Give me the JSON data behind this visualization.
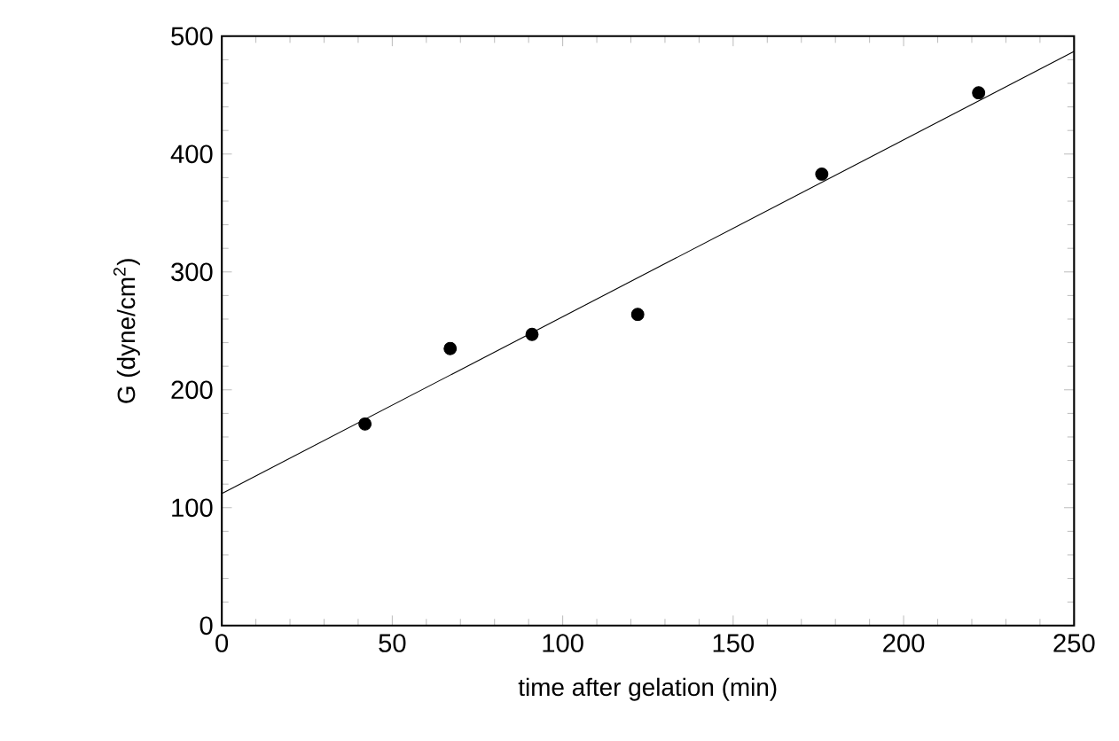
{
  "chart_data": {
    "type": "scatter",
    "xlabel": "time after gelation (min)",
    "ylabel": "G (dyne/cm$^{2}$)",
    "series": [
      {
        "color": "#000000",
        "marker": "circle",
        "x": [
          42,
          67,
          91,
          122,
          176,
          222
        ],
        "values": [
          171,
          235,
          247,
          264,
          383,
          452
        ]
      },
      {
        "type": "line",
        "color": "#000000",
        "marker": "none",
        "line_style": "solid",
        "x": [
          0,
          250
        ],
        "values": [
          112,
          487
        ]
      }
    ],
    "xlim": [
      0,
      250
    ],
    "ylim": [
      0,
      500
    ],
    "xticks": [
      0,
      50,
      100,
      150,
      200,
      250
    ],
    "yticks": [
      0,
      100,
      200,
      300,
      400,
      500
    ],
    "grid": false
  }
}
